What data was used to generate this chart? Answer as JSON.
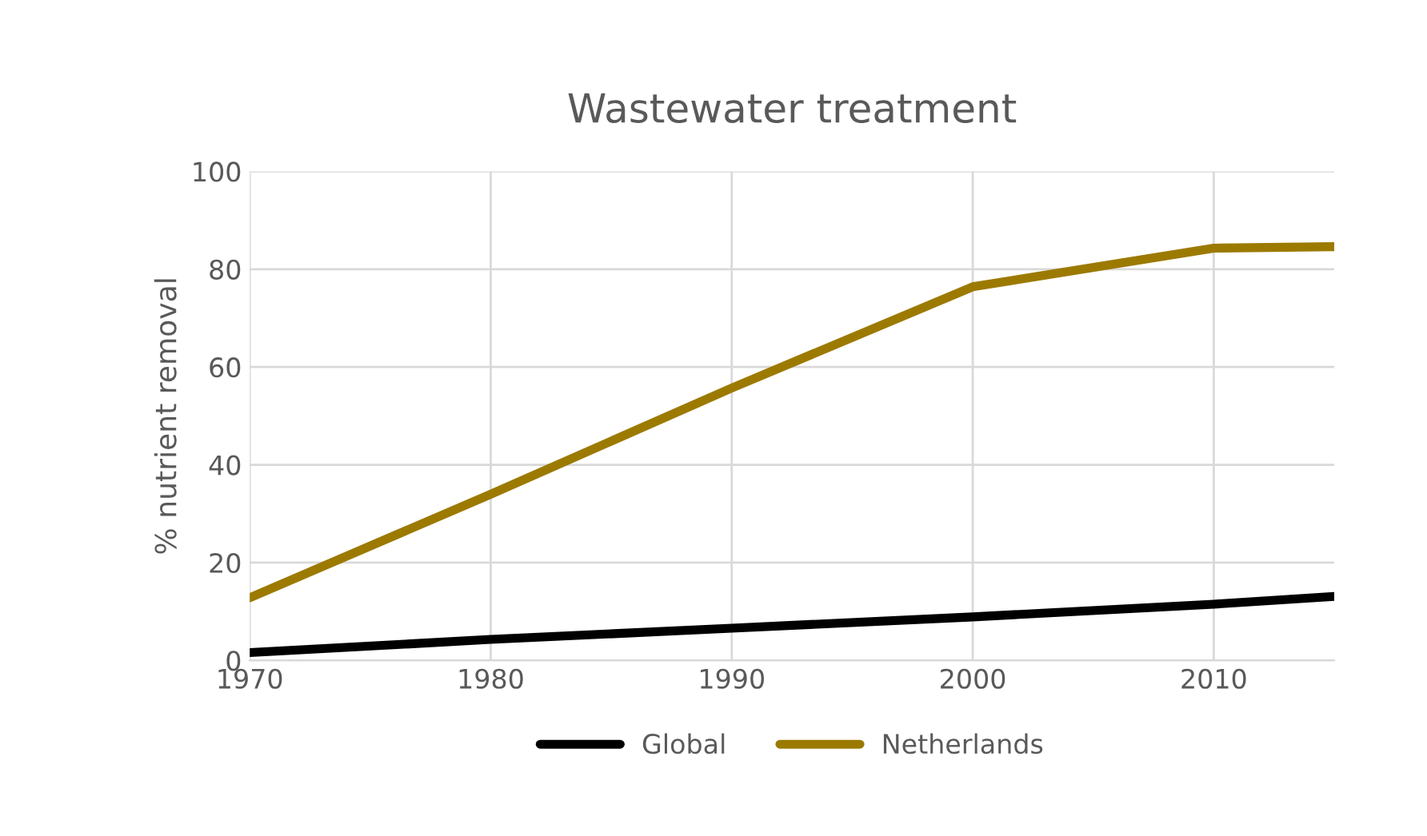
{
  "chart_data": {
    "type": "line",
    "title": "Wastewater treatment",
    "ylabel": "% nutrient removal",
    "x": [
      1970,
      1980,
      1990,
      2000,
      2010,
      2015
    ],
    "series": [
      {
        "name": "Global",
        "color": "#000000",
        "values": [
          1.6,
          4.3,
          6.6,
          8.9,
          11.5,
          13.1
        ]
      },
      {
        "name": "Netherlands",
        "color": "#9c7a00",
        "values": [
          12.8,
          34,
          55.7,
          76.4,
          84.3,
          84.6
        ]
      }
    ],
    "xlim": [
      1970,
      2015
    ],
    "xticks": [
      1970,
      1980,
      1990,
      2000,
      2010
    ],
    "ylim": [
      0,
      100
    ],
    "yticks": [
      0,
      20,
      40,
      60,
      80,
      100
    ],
    "grid": true,
    "legend": "bottom",
    "marker": "none",
    "line_style": "solid"
  }
}
